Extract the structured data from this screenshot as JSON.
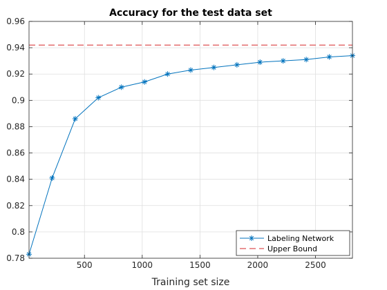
{
  "chart_data": {
    "type": "line",
    "title": "Accuracy for the test data set",
    "xlabel": "Training set size",
    "ylabel": "",
    "xlim": [
      20,
      2820
    ],
    "ylim": [
      0.78,
      0.96
    ],
    "x_ticks": [
      500,
      1000,
      1500,
      2000,
      2500
    ],
    "x_tick_labels": [
      "500",
      "1000",
      "1500",
      "2000",
      "2500"
    ],
    "y_ticks": [
      0.78,
      0.8,
      0.82,
      0.84,
      0.86,
      0.88,
      0.9,
      0.92,
      0.94,
      0.96
    ],
    "y_tick_labels": [
      "0.78",
      "0.8",
      "0.82",
      "0.84",
      "0.86",
      "0.88",
      "0.9",
      "0.92",
      "0.94",
      "0.96"
    ],
    "grid": true,
    "legend_position": "bottom-right",
    "series": [
      {
        "name": "Labeling Network",
        "color": "#0072BD",
        "marker": "asterisk",
        "line_style": "solid",
        "x": [
          20,
          220,
          420,
          620,
          820,
          1020,
          1220,
          1420,
          1620,
          1820,
          2020,
          2220,
          2420,
          2620,
          2820
        ],
        "values": [
          0.783,
          0.841,
          0.886,
          0.902,
          0.91,
          0.914,
          0.92,
          0.923,
          0.925,
          0.927,
          0.929,
          0.93,
          0.931,
          0.933,
          0.934
        ]
      },
      {
        "name": "Upper Bound",
        "color": "#D62728",
        "line_style": "dashed",
        "x": [
          20,
          2820
        ],
        "values": [
          0.942,
          0.942
        ]
      }
    ]
  }
}
